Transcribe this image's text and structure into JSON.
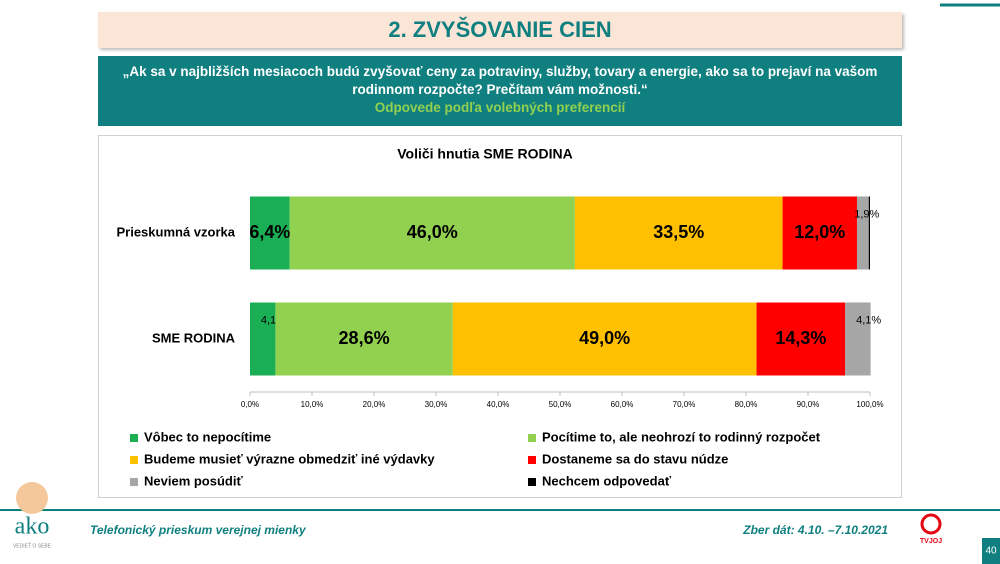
{
  "header": {
    "title": "2. ZVYŠOVANIE CIEN",
    "question": "„Ak sa v najbližších mesiacoch budú zvyšovať ceny za potraviny, služby, tovary a energie, ako sa to prejaví na vašom rodinnom rozpočte? Prečítam vám možnosti.“",
    "subtitle": "Odpovede podľa volebných preferencií"
  },
  "chart_data": {
    "type": "bar",
    "orientation": "horizontal",
    "stacked": true,
    "title": "Voliči hnutia SME RODINA",
    "categories": [
      "Prieskumná vzorka",
      "SME RODINA"
    ],
    "series": [
      {
        "name": "Vôbec to nepocítime",
        "color": "#1aaf54",
        "values": [
          6.4,
          4.1
        ],
        "value_labels": [
          "6,4%",
          "4,1%"
        ]
      },
      {
        "name": "Pocítime to, ale neohrozí to rodinný rozpočet",
        "color": "#92d050",
        "values": [
          46.0,
          28.6
        ],
        "value_labels": [
          "46,0%",
          "28,6%"
        ]
      },
      {
        "name": "Budeme musieť výrazne obmedziť iné výdavky",
        "color": "#ffc000",
        "values": [
          33.5,
          49.0
        ],
        "value_labels": [
          "33,5%",
          "49,0%"
        ]
      },
      {
        "name": "Dostaneme sa do stavu núdze",
        "color": "#ff0000",
        "values": [
          12.0,
          14.3
        ],
        "value_labels": [
          "12,0%",
          "14,3%"
        ]
      },
      {
        "name": "Neviem posúdiť",
        "color": "#a6a6a6",
        "values": [
          1.9,
          4.1
        ],
        "value_labels": [
          "1,9%",
          "4,1%"
        ]
      },
      {
        "name": "Nechcem odpovedať",
        "color": "#000000",
        "values": [
          0.2,
          0
        ],
        "value_labels": [
          null,
          null
        ]
      }
    ],
    "xlim": [
      0,
      100
    ],
    "xticks": [
      {
        "value": 0,
        "label": "0,0%"
      },
      {
        "value": 10,
        "label": "10,0%"
      },
      {
        "value": 20,
        "label": "20,0%"
      },
      {
        "value": 30,
        "label": "30,0%"
      },
      {
        "value": 40,
        "label": "40,0%"
      },
      {
        "value": 50,
        "label": "50,0%"
      },
      {
        "value": 60,
        "label": "60,0%"
      },
      {
        "value": 70,
        "label": "70,0%"
      },
      {
        "value": 80,
        "label": "80,0%"
      },
      {
        "value": 90,
        "label": "90,0%"
      },
      {
        "value": 100,
        "label": "100,0%"
      }
    ],
    "legend": "bottom"
  },
  "footer": {
    "left": "Telefonický prieskum verejnej mienky",
    "right": "Zber dát: 4.10. –7.10.2021",
    "page": "40",
    "logo": "ako",
    "logo_tagline": "VEDIEŤ O SEBE",
    "tv_logo": "TVJOJ"
  }
}
